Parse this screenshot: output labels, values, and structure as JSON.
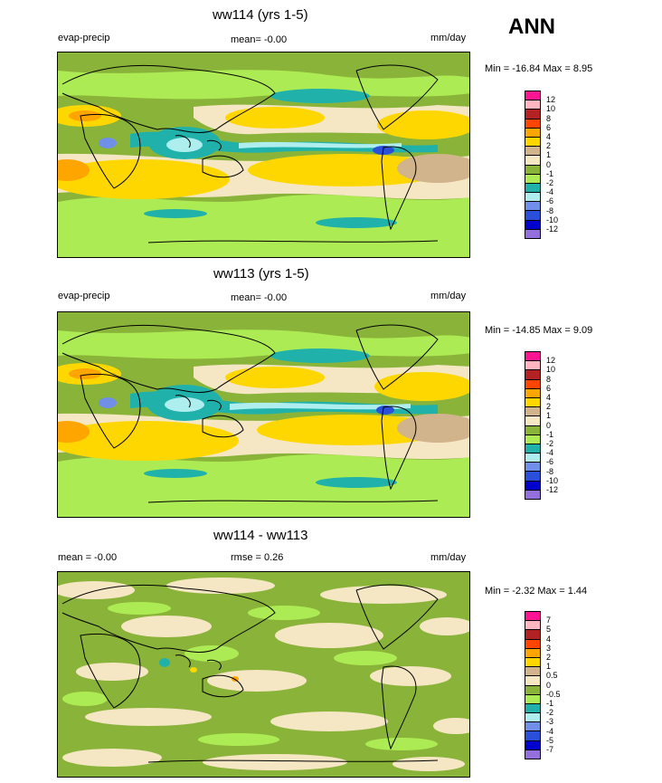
{
  "season": "ANN",
  "panels": [
    {
      "title": "ww114 (yrs 1-5)",
      "left_label": "evap-precip",
      "center_label": "mean=  -0.00",
      "units": "mm/day",
      "minmax": "Min = -16.84 Max =   8.95",
      "levels": [
        "12",
        "10",
        "8",
        "6",
        "4",
        "2",
        "1",
        "0",
        "-1",
        "-2",
        "-4",
        "-6",
        "-8",
        "-10",
        "-12"
      ]
    },
    {
      "title": "ww113 (yrs 1-5)",
      "left_label": "evap-precip",
      "center_label": "mean=  -0.00",
      "units": "mm/day",
      "minmax": "Min = -14.85 Max =   9.09",
      "levels": [
        "12",
        "10",
        "8",
        "6",
        "4",
        "2",
        "1",
        "0",
        "-1",
        "-2",
        "-4",
        "-6",
        "-8",
        "-10",
        "-12"
      ]
    },
    {
      "title": "ww114 - ww113",
      "left_label": "mean =  -0.00",
      "center_label": "rmse =   0.26",
      "units": "mm/day",
      "minmax": "Min =  -2.32 Max =   1.44",
      "levels": [
        "7",
        "5",
        "4",
        "3",
        "2",
        "1",
        "0.5",
        "0",
        "-0.5",
        "-1",
        "-2",
        "-3",
        "-4",
        "-5",
        "-7"
      ]
    }
  ],
  "colors": {
    "scale16": [
      "#ff1493",
      "#ffb6c1",
      "#b22222",
      "#ff4500",
      "#ffa500",
      "#ffd700",
      "#d2b48c",
      "#f5e6c4",
      "#8ab33a",
      "#adeb54",
      "#20b2aa",
      "#afeeee",
      "#6f8fe8",
      "#2a4fd8",
      "#0000cd",
      "#9370db"
    ],
    "ocean_green": "#8ab33a",
    "light_green": "#adeb54",
    "tan": "#f5e6c4"
  },
  "chart_data": [
    {
      "type": "heatmap",
      "title": "ww114 (yrs 1-5)",
      "variable": "evap-precip",
      "units": "mm/day",
      "mean": -0.0,
      "min": -16.84,
      "max": 8.95,
      "contour_levels": [
        12,
        10,
        8,
        6,
        4,
        2,
        1,
        0,
        -1,
        -2,
        -4,
        -6,
        -8,
        -10,
        -12
      ]
    },
    {
      "type": "heatmap",
      "title": "ww113 (yrs 1-5)",
      "variable": "evap-precip",
      "units": "mm/day",
      "mean": -0.0,
      "min": -14.85,
      "max": 9.09,
      "contour_levels": [
        12,
        10,
        8,
        6,
        4,
        2,
        1,
        0,
        -1,
        -2,
        -4,
        -6,
        -8,
        -10,
        -12
      ]
    },
    {
      "type": "heatmap",
      "title": "ww114 - ww113",
      "units": "mm/day",
      "mean": -0.0,
      "rmse": 0.26,
      "min": -2.32,
      "max": 1.44,
      "contour_levels": [
        7,
        5,
        4,
        3,
        2,
        1,
        0.5,
        0,
        -0.5,
        -1,
        -2,
        -3,
        -4,
        -5,
        -7
      ]
    }
  ]
}
